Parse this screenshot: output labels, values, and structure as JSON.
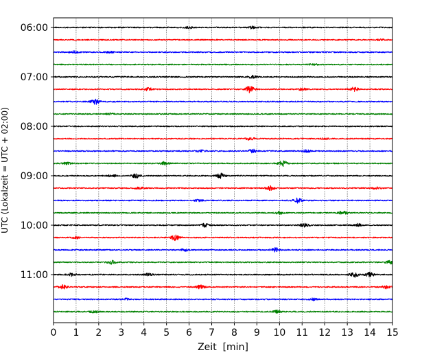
{
  "chart_data": {
    "type": "line",
    "title": "",
    "xlabel": "Zeit  [min]",
    "ylabel": "UTC (Lokalzeit = UTC + 02:00)",
    "xlim": [
      0,
      15
    ],
    "x_ticks": [
      0,
      1,
      2,
      3,
      4,
      5,
      6,
      7,
      8,
      9,
      10,
      11,
      12,
      13,
      14,
      15
    ],
    "x_tick_labels": [
      "0",
      "1",
      "2",
      "3",
      "4",
      "5",
      "6",
      "7",
      "8",
      "9",
      "10",
      "11",
      "12",
      "13",
      "14",
      "15"
    ],
    "y_tick_labels": [
      "06:00",
      "07:00",
      "08:00",
      "09:00",
      "10:00",
      "11:00"
    ],
    "grid": {
      "x": "dotted",
      "y": false
    },
    "trace_interval_min": 15,
    "first_trace_utc": "06:00",
    "trace_colors": [
      "#000000",
      "#ff0000",
      "#0000ff",
      "#008000"
    ],
    "traces": [
      {
        "start": "06:00",
        "color": "#000000",
        "bursts": [
          {
            "t": 6.0,
            "amp": 1.2
          },
          {
            "t": 8.8,
            "amp": 1.6
          }
        ]
      },
      {
        "start": "06:15",
        "color": "#ff0000",
        "bursts": [
          {
            "t": 14.5,
            "amp": 1.0
          }
        ]
      },
      {
        "start": "06:30",
        "color": "#0000ff",
        "bursts": [
          {
            "t": 0.9,
            "amp": 1.6
          },
          {
            "t": 2.5,
            "amp": 1.0
          }
        ]
      },
      {
        "start": "06:45",
        "color": "#008000",
        "bursts": [
          {
            "t": 11.5,
            "amp": 1.0
          }
        ]
      },
      {
        "start": "07:00",
        "color": "#000000",
        "bursts": [
          {
            "t": 8.8,
            "amp": 1.8
          }
        ]
      },
      {
        "start": "07:15",
        "color": "#ff0000",
        "bursts": [
          {
            "t": 4.2,
            "amp": 2.0
          },
          {
            "t": 8.7,
            "amp": 5.5
          },
          {
            "t": 11.0,
            "amp": 1.6
          },
          {
            "t": 13.3,
            "amp": 2.8
          }
        ]
      },
      {
        "start": "07:30",
        "color": "#0000ff",
        "bursts": [
          {
            "t": 1.85,
            "amp": 3.5
          }
        ]
      },
      {
        "start": "07:45",
        "color": "#008000",
        "bursts": [
          {
            "t": 2.5,
            "amp": 0.9
          }
        ]
      },
      {
        "start": "08:00",
        "color": "#000000",
        "bursts": []
      },
      {
        "start": "08:15",
        "color": "#ff0000",
        "bursts": [
          {
            "t": 8.7,
            "amp": 2.0
          },
          {
            "t": 12.0,
            "amp": 1.0
          }
        ]
      },
      {
        "start": "08:30",
        "color": "#0000ff",
        "bursts": [
          {
            "t": 6.5,
            "amp": 1.6
          },
          {
            "t": 8.8,
            "amp": 2.4
          },
          {
            "t": 11.2,
            "amp": 1.8
          }
        ]
      },
      {
        "start": "08:45",
        "color": "#008000",
        "bursts": [
          {
            "t": 0.6,
            "amp": 1.6
          },
          {
            "t": 4.9,
            "amp": 2.0
          },
          {
            "t": 10.15,
            "amp": 3.8
          }
        ]
      },
      {
        "start": "09:00",
        "color": "#000000",
        "bursts": [
          {
            "t": 3.65,
            "amp": 3.0
          },
          {
            "t": 7.4,
            "amp": 3.2
          },
          {
            "t": 2.6,
            "amp": 1.6
          }
        ]
      },
      {
        "start": "09:15",
        "color": "#ff0000",
        "bursts": [
          {
            "t": 9.6,
            "amp": 2.8
          },
          {
            "t": 3.8,
            "amp": 1.4
          },
          {
            "t": 14.3,
            "amp": 1.4
          }
        ]
      },
      {
        "start": "09:30",
        "color": "#0000ff",
        "bursts": [
          {
            "t": 10.8,
            "amp": 3.8
          },
          {
            "t": 6.4,
            "amp": 1.2
          }
        ]
      },
      {
        "start": "09:45",
        "color": "#008000",
        "bursts": [
          {
            "t": 12.8,
            "amp": 2.5
          },
          {
            "t": 10.0,
            "amp": 1.6
          }
        ]
      },
      {
        "start": "10:00",
        "color": "#000000",
        "bursts": [
          {
            "t": 6.7,
            "amp": 2.4
          },
          {
            "t": 11.1,
            "amp": 2.6
          },
          {
            "t": 13.5,
            "amp": 2.2
          }
        ]
      },
      {
        "start": "10:15",
        "color": "#ff0000",
        "bursts": [
          {
            "t": 5.4,
            "amp": 4.0
          },
          {
            "t": 1.0,
            "amp": 1.4
          }
        ]
      },
      {
        "start": "10:30",
        "color": "#0000ff",
        "bursts": [
          {
            "t": 9.8,
            "amp": 2.8
          },
          {
            "t": 5.8,
            "amp": 1.4
          }
        ]
      },
      {
        "start": "10:45",
        "color": "#008000",
        "bursts": [
          {
            "t": 2.55,
            "amp": 2.4
          },
          {
            "t": 14.9,
            "amp": 2.2
          }
        ]
      },
      {
        "start": "11:00",
        "color": "#000000",
        "bursts": [
          {
            "t": 0.8,
            "amp": 2.0
          },
          {
            "t": 13.3,
            "amp": 3.6
          },
          {
            "t": 14.0,
            "amp": 3.0
          },
          {
            "t": 4.2,
            "amp": 1.6
          }
        ]
      },
      {
        "start": "11:15",
        "color": "#ff0000",
        "bursts": [
          {
            "t": 0.4,
            "amp": 2.8
          },
          {
            "t": 6.5,
            "amp": 2.4
          },
          {
            "t": 14.7,
            "amp": 2.2
          }
        ]
      },
      {
        "start": "11:30",
        "color": "#0000ff",
        "bursts": [
          {
            "t": 3.2,
            "amp": 1.2
          },
          {
            "t": 11.5,
            "amp": 1.4
          }
        ]
      },
      {
        "start": "11:45",
        "color": "#008000",
        "bursts": [
          {
            "t": 1.8,
            "amp": 1.6
          },
          {
            "t": 9.9,
            "amp": 1.8
          }
        ]
      }
    ]
  }
}
